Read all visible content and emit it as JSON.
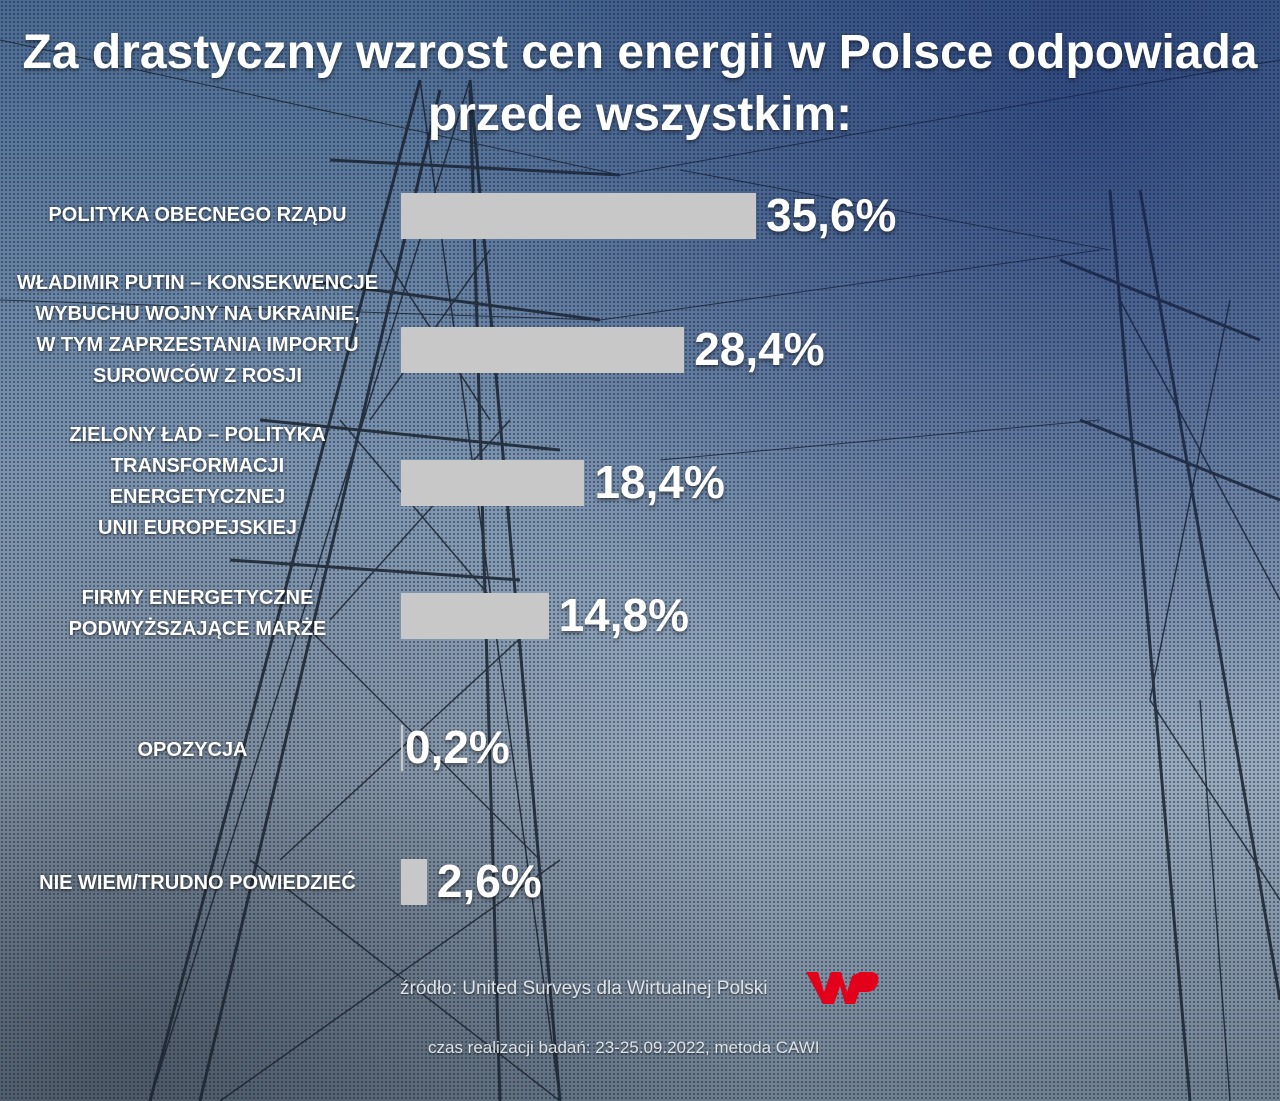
{
  "title_lines": [
    "Za drastyczny wzrost cen energii w Polsce odpowiada",
    "przede wszystkim:"
  ],
  "chart_data": {
    "type": "bar",
    "orientation": "horizontal",
    "categories": [
      "POLITYKA OBECNEGO RZĄDU",
      "WŁADIMIR PUTIN – KONSEKWENCJE\nWYBUCHU WOJNY NA UKRAINIE,\nW TYM ZAPRZESTANIA IMPORTU\nSUROWCÓW Z ROSJI",
      "ZIELONY ŁAD – POLITYKA\nTRANSFORMACJI\nENERGETYCZNEJ\nUNII EUROPEJSKIEJ",
      "FIRMY ENERGETYCZNE\nPODWYŻSZAJĄCE MARŻE",
      "OPOZYCJA",
      "NIE WIEM/TRUDNO POWIEDZIEĆ"
    ],
    "values": [
      35.6,
      28.4,
      18.4,
      14.8,
      0.2,
      2.6
    ],
    "value_labels": [
      "35,6%",
      "28,4%",
      "18,4%",
      "14,8%",
      "0,2%",
      "2,6%"
    ],
    "unit": "%",
    "bar_color": "#c8c8c8",
    "grid": false,
    "legend": "none"
  },
  "footer": {
    "source": "źródło: United Surveys dla Wirtualnej Polski",
    "method": "czas realizacji badań: 23-25.09.2022, metoda CAWI"
  },
  "logo": {
    "name": "wp-logo",
    "color": "#e2001a"
  }
}
